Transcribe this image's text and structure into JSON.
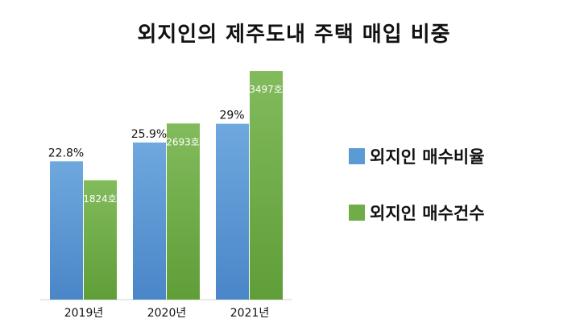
{
  "chart_data": {
    "type": "bar",
    "title": "외지인의 제주도내 주택 매입 비중",
    "categories": [
      "2019년",
      "2020년",
      "2021년"
    ],
    "series": [
      {
        "name": "외지인 매수비율",
        "values": [
          22.8,
          25.9,
          29
        ],
        "labels": [
          "22.8%",
          "25.9%",
          "29%"
        ],
        "color": "#5b9bd5"
      },
      {
        "name": "외지인 매수건수",
        "values": [
          1824,
          2693,
          3497
        ],
        "labels": [
          "1824호",
          "2693호",
          "3497호"
        ],
        "color": "#70ad47"
      }
    ],
    "legend_position": "right",
    "grid": false
  }
}
